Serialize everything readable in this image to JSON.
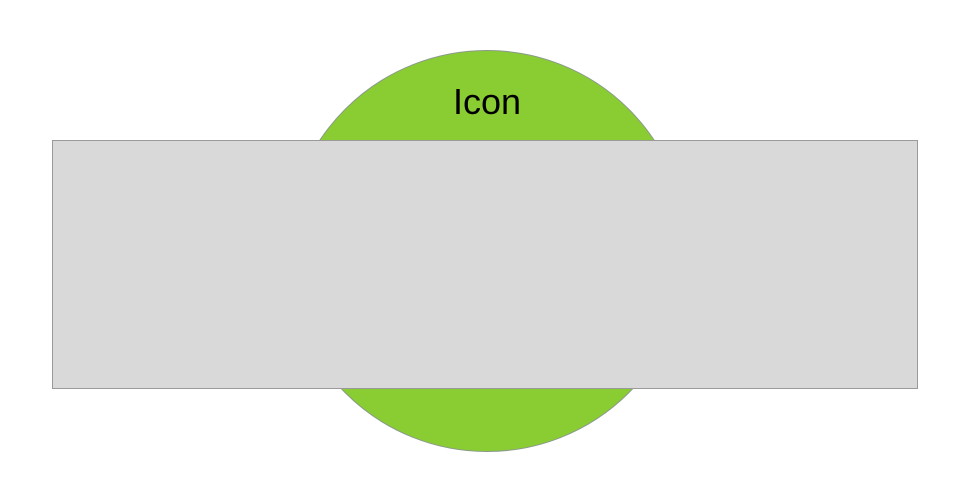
{
  "icon": {
    "label": "Icon",
    "fill_color": "#8acd33",
    "stroke_color": "#8a9a8a"
  },
  "panel": {
    "fill_color": "#d9d9d9",
    "stroke_color": "#9a9a9a"
  }
}
